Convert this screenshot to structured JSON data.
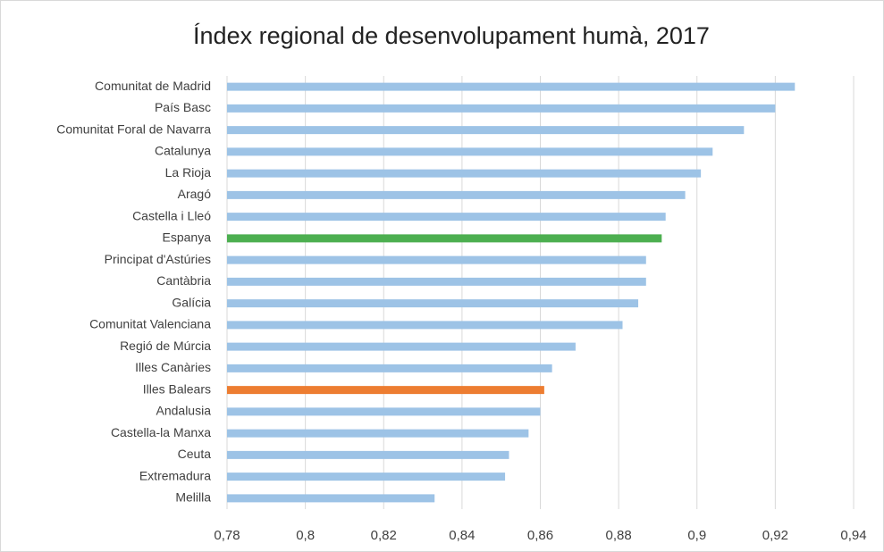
{
  "chart_data": {
    "type": "barh",
    "title": "Índex regional de desenvolupament humà, 2017",
    "categories": [
      "Comunitat de Madrid",
      "País Basc",
      "Comunitat Foral de Navarra",
      "Catalunya",
      "La Rioja",
      "Aragó",
      "Castella i Lleó",
      "Espanya",
      "Principat d'Astúries",
      "Cantàbria",
      "Galícia",
      "Comunitat Valenciana",
      "Regió de Múrcia",
      "Illes Canàries",
      "Illes Balears",
      "Andalusia",
      "Castella-la Manxa",
      "Ceuta",
      "Extremadura",
      "Melilla"
    ],
    "values": [
      0.925,
      0.92,
      0.912,
      0.904,
      0.901,
      0.897,
      0.892,
      0.891,
      0.887,
      0.887,
      0.885,
      0.881,
      0.869,
      0.863,
      0.861,
      0.86,
      0.857,
      0.852,
      0.851,
      0.833
    ],
    "colors": [
      "#9dc3e6",
      "#9dc3e6",
      "#9dc3e6",
      "#9dc3e6",
      "#9dc3e6",
      "#9dc3e6",
      "#9dc3e6",
      "#4caf50",
      "#9dc3e6",
      "#9dc3e6",
      "#9dc3e6",
      "#9dc3e6",
      "#9dc3e6",
      "#9dc3e6",
      "#ed7d31",
      "#9dc3e6",
      "#9dc3e6",
      "#9dc3e6",
      "#9dc3e6",
      "#9dc3e6"
    ],
    "xlim": [
      0.78,
      0.94
    ],
    "xticks": [
      {
        "value": 0.78,
        "label": "0,78"
      },
      {
        "value": 0.8,
        "label": "0,8"
      },
      {
        "value": 0.82,
        "label": "0,82"
      },
      {
        "value": 0.84,
        "label": "0,84"
      },
      {
        "value": 0.86,
        "label": "0,86"
      },
      {
        "value": 0.88,
        "label": "0,88"
      },
      {
        "value": 0.9,
        "label": "0,9"
      },
      {
        "value": 0.92,
        "label": "0,92"
      },
      {
        "value": 0.94,
        "label": "0,94"
      }
    ],
    "grid": true
  }
}
